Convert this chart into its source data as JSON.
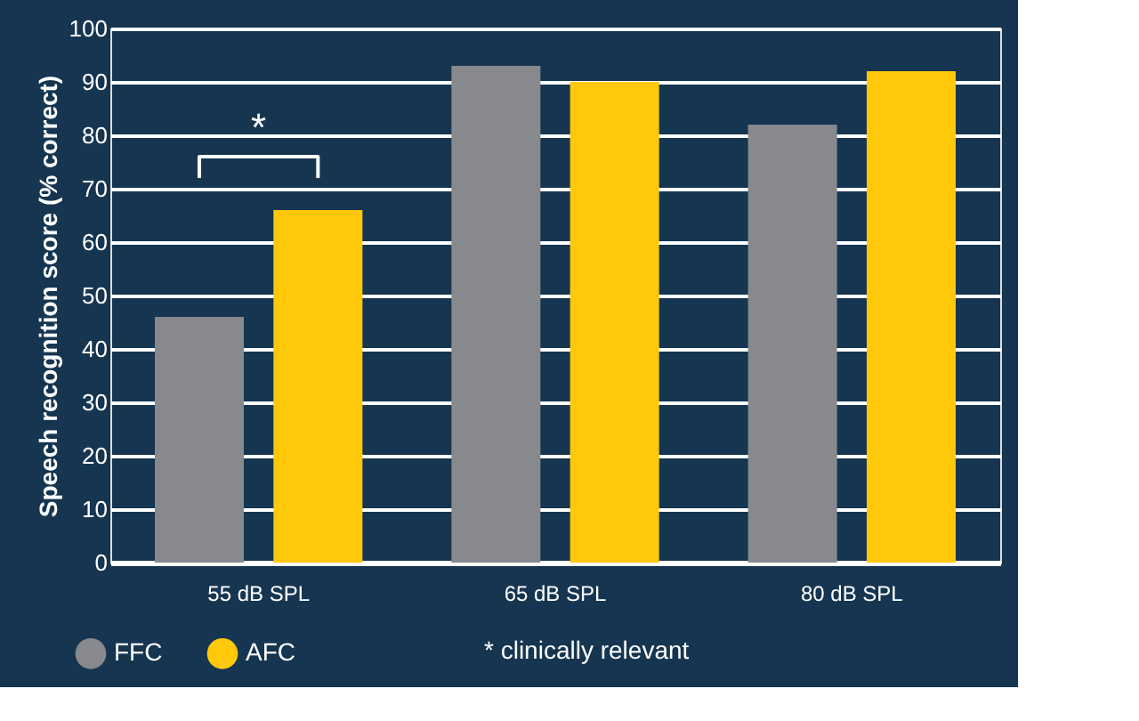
{
  "chart_data": {
    "type": "bar",
    "ylabel": "Speech recognition score (% correct)",
    "categories": [
      "55 dB SPL",
      "65 dB SPL",
      "80 dB SPL"
    ],
    "series": [
      {
        "name": "FFC",
        "color": "#87898d",
        "values": [
          46,
          93,
          82
        ]
      },
      {
        "name": "AFC",
        "color": "#ffc80a",
        "values": [
          66,
          90,
          92
        ]
      }
    ],
    "ylim": [
      0,
      100
    ],
    "yticks": [
      0,
      10,
      20,
      30,
      40,
      50,
      60,
      70,
      80,
      90,
      100
    ],
    "grid": "y",
    "legend": "bottom left",
    "annotations": [
      "*",
      "* clinically relevant"
    ]
  }
}
